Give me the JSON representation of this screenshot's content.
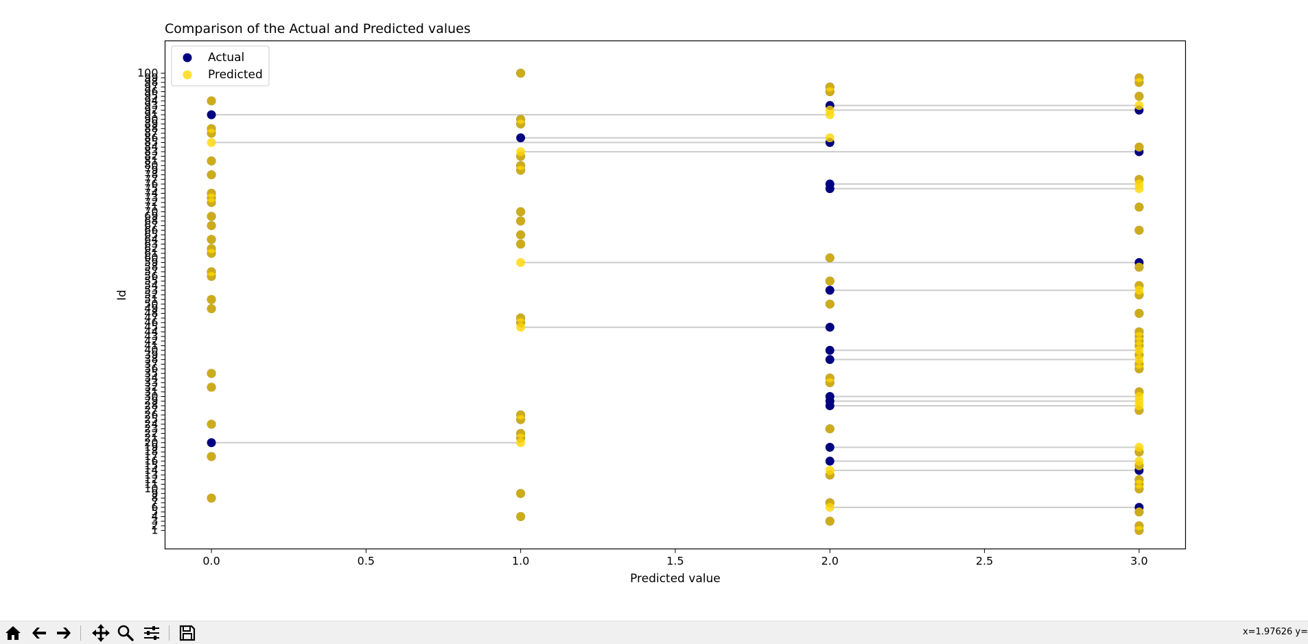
{
  "toolbar": {
    "buttons": [
      {
        "name": "home-icon",
        "label": "Home"
      },
      {
        "name": "back-icon",
        "label": "Back"
      },
      {
        "name": "forward-icon",
        "label": "Forward"
      },
      {
        "name": "pan-icon",
        "label": "Pan"
      },
      {
        "name": "zoom-icon",
        "label": "Zoom"
      },
      {
        "name": "configure-subplots-icon",
        "label": "Configure subplots"
      },
      {
        "name": "save-icon",
        "label": "Save"
      }
    ],
    "coords_text": "x=1.97626    y="
  },
  "colors": {
    "actual": "#000080",
    "predicted": "#ffd700",
    "line": "#cccccc"
  },
  "chart_data": {
    "type": "scatter",
    "title": "Comparison of the Actual and Predicted values",
    "xlabel": "Predicted value",
    "ylabel": "Id",
    "xlim": [
      -0.15,
      3.15
    ],
    "ylim": [
      -3,
      107
    ],
    "xticks": [
      0.0,
      0.5,
      1.0,
      1.5,
      2.0,
      2.5,
      3.0
    ],
    "xtick_labels": [
      "0.0",
      "0.5",
      "1.0",
      "1.5",
      "2.0",
      "2.5",
      "3.0"
    ],
    "yticks": [
      1,
      2,
      3,
      4,
      5,
      6,
      7,
      8,
      9,
      10,
      11,
      12,
      13,
      14,
      15,
      16,
      17,
      18,
      19,
      20,
      21,
      22,
      23,
      24,
      25,
      26,
      27,
      28,
      29,
      30,
      31,
      32,
      33,
      34,
      35,
      36,
      37,
      38,
      39,
      40,
      41,
      42,
      43,
      44,
      45,
      46,
      47,
      48,
      49,
      50,
      51,
      52,
      53,
      54,
      55,
      56,
      57,
      58,
      59,
      60,
      61,
      62,
      63,
      64,
      65,
      66,
      67,
      68,
      69,
      70,
      71,
      72,
      73,
      74,
      75,
      76,
      77,
      78,
      79,
      80,
      81,
      82,
      83,
      84,
      85,
      86,
      87,
      88,
      89,
      90,
      91,
      92,
      93,
      94,
      95,
      96,
      97,
      98,
      99,
      100
    ],
    "legend_loc": "upper-left",
    "grid": false,
    "ids": [
      1,
      2,
      3,
      4,
      5,
      6,
      7,
      8,
      9,
      10,
      11,
      12,
      13,
      14,
      15,
      16,
      17,
      18,
      19,
      20,
      21,
      22,
      23,
      24,
      25,
      26,
      27,
      28,
      29,
      30,
      31,
      32,
      33,
      34,
      35,
      36,
      37,
      38,
      39,
      40,
      41,
      42,
      43,
      44,
      45,
      46,
      47,
      48,
      49,
      50,
      51,
      52,
      53,
      54,
      55,
      56,
      57,
      58,
      59,
      60,
      61,
      62,
      63,
      64,
      65,
      66,
      67,
      68,
      69,
      70,
      71,
      72,
      73,
      74,
      75,
      76,
      77,
      78,
      79,
      80,
      81,
      82,
      83,
      84,
      85,
      86,
      87,
      88,
      89,
      90,
      91,
      92,
      93,
      94,
      95,
      96,
      97,
      98,
      99,
      100
    ],
    "series": [
      {
        "name": "Actual",
        "values": [
          3,
          3,
          2,
          1,
          3,
          3,
          2,
          0,
          1,
          3,
          3,
          3,
          2,
          3,
          3,
          2,
          0,
          3,
          2,
          0,
          1,
          1,
          2,
          0,
          1,
          1,
          3,
          2,
          2,
          2,
          3,
          0,
          2,
          2,
          0,
          3,
          3,
          2,
          3,
          2,
          3,
          3,
          3,
          3,
          2,
          1,
          1,
          3,
          0,
          2,
          0,
          3,
          2,
          3,
          2,
          0,
          0,
          3,
          3,
          2,
          0,
          0,
          1,
          0,
          1,
          3,
          0,
          1,
          0,
          1,
          3,
          0,
          0,
          0,
          2,
          2,
          3,
          0,
          1,
          1,
          0,
          1,
          3,
          3,
          2,
          1,
          0,
          0,
          1,
          1,
          0,
          3,
          2,
          0,
          3,
          2,
          2,
          3,
          3,
          1
        ]
      },
      {
        "name": "Predicted",
        "values": [
          3,
          3,
          2,
          1,
          3,
          2,
          2,
          0,
          1,
          3,
          3,
          3,
          2,
          2,
          3,
          3,
          0,
          3,
          3,
          1,
          1,
          1,
          2,
          0,
          1,
          1,
          3,
          3,
          3,
          3,
          3,
          0,
          2,
          2,
          0,
          3,
          3,
          3,
          3,
          3,
          3,
          3,
          3,
          3,
          1,
          1,
          1,
          3,
          0,
          2,
          0,
          3,
          3,
          3,
          2,
          0,
          0,
          3,
          1,
          2,
          0,
          0,
          1,
          0,
          1,
          3,
          0,
          1,
          0,
          1,
          3,
          0,
          0,
          0,
          3,
          3,
          3,
          0,
          1,
          1,
          0,
          1,
          1,
          3,
          0,
          2,
          0,
          0,
          1,
          1,
          2,
          2,
          3,
          0,
          3,
          2,
          2,
          3,
          3,
          1
        ]
      }
    ]
  }
}
